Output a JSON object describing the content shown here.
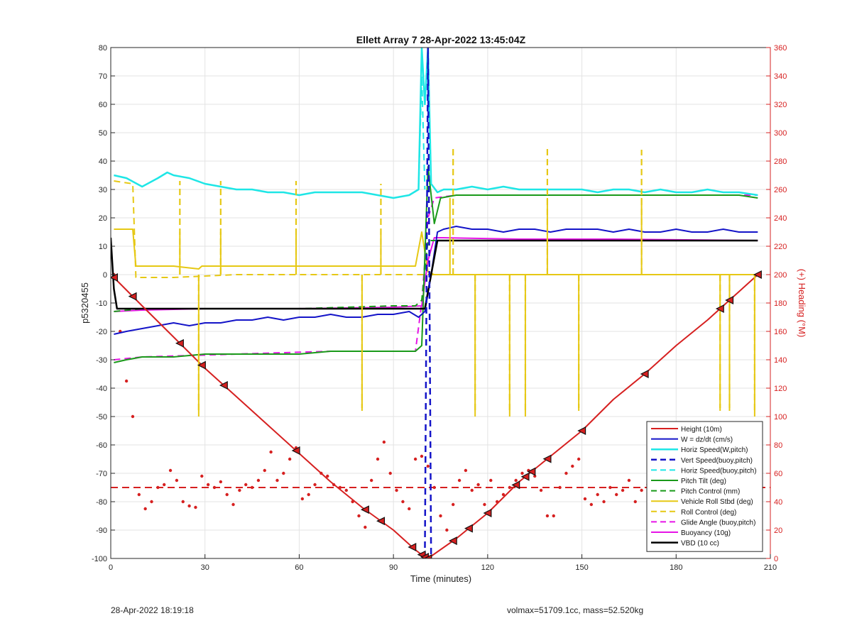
{
  "chart_data": {
    "type": "line",
    "title": "Ellett Array 7 28-Apr-2022 13:45:04Z",
    "xlabel": "Time (minutes)",
    "ylabel": "p5320455",
    "ylabel_right": "(+) Heading (°M)",
    "xlim": [
      0,
      210
    ],
    "ylim": [
      -100,
      80
    ],
    "ylim_right": [
      0,
      360
    ],
    "x_ticks": [
      0,
      30,
      60,
      90,
      120,
      150,
      180,
      210
    ],
    "y_ticks": [
      -100,
      -90,
      -80,
      -70,
      -60,
      -50,
      -40,
      -30,
      -20,
      -10,
      0,
      10,
      20,
      30,
      40,
      50,
      60,
      70,
      80
    ],
    "y_ticks_right": [
      0,
      20,
      40,
      60,
      80,
      100,
      120,
      140,
      160,
      180,
      200,
      220,
      240,
      260,
      280,
      300,
      320,
      340,
      360
    ],
    "grid": true,
    "legend_position": "bottom-right",
    "series": [
      {
        "name": "Height (10m)",
        "color": "#d62020",
        "style": "solid",
        "width": 2,
        "x": [
          1,
          10,
          20,
          30,
          40,
          50,
          60,
          70,
          80,
          90,
          97,
          100,
          101,
          110,
          120,
          130,
          140,
          150,
          160,
          170,
          180,
          190,
          200,
          206
        ],
        "y": [
          -1,
          -11,
          -22,
          -33,
          -43,
          -53,
          -63,
          -73,
          -82,
          -90,
          -97,
          -99.5,
          -100,
          -93,
          -84,
          -73,
          -64,
          -55,
          -44,
          -35,
          -25,
          -16,
          -6,
          0
        ]
      },
      {
        "name": "W = dz/dt (cm/s)",
        "color": "#1414c8",
        "style": "solid",
        "width": 2,
        "x": [
          1,
          5,
          10,
          15,
          20,
          25,
          30,
          35,
          40,
          45,
          50,
          55,
          60,
          65,
          70,
          75,
          80,
          85,
          90,
          95,
          98,
          100,
          102,
          104,
          106,
          110,
          115,
          120,
          125,
          130,
          135,
          140,
          145,
          150,
          155,
          160,
          165,
          170,
          175,
          180,
          185,
          190,
          195,
          200,
          206
        ],
        "y": [
          -21,
          -20,
          -19,
          -18,
          -17,
          -18,
          -17,
          -17,
          -16,
          -16,
          -15,
          -16,
          -15,
          -15,
          -14,
          -15,
          -15,
          -14,
          -14,
          -13,
          -15,
          -13,
          0,
          15,
          16,
          17,
          16,
          16,
          15,
          16,
          16,
          15,
          16,
          16,
          16,
          15,
          16,
          15,
          15,
          16,
          15,
          15,
          16,
          15,
          15
        ]
      },
      {
        "name": "Horiz Speed(W,pitch)",
        "color": "#1ee6e6",
        "style": "solid",
        "width": 2.5,
        "x": [
          1,
          5,
          10,
          15,
          18,
          20,
          25,
          30,
          35,
          40,
          45,
          50,
          55,
          60,
          65,
          70,
          75,
          80,
          85,
          90,
          95,
          98,
          99,
          100,
          101,
          102,
          104,
          106,
          110,
          115,
          120,
          125,
          130,
          135,
          140,
          145,
          150,
          155,
          160,
          165,
          170,
          175,
          180,
          185,
          190,
          195,
          200,
          206
        ],
        "y": [
          35,
          34,
          31,
          34,
          36,
          35,
          34,
          32,
          31,
          30,
          30,
          29,
          29,
          28,
          29,
          29,
          29,
          29,
          28,
          27,
          28,
          30,
          80,
          60,
          80,
          32,
          29,
          30,
          30,
          31,
          30,
          31,
          30,
          30,
          30,
          30,
          30,
          29,
          30,
          30,
          29,
          30,
          29,
          29,
          30,
          29,
          29,
          28
        ]
      },
      {
        "name": "Vert Speed(buoy,pitch)",
        "color": "#1414c8",
        "style": "dashed",
        "width": 2.5,
        "x": [
          100,
          101,
          102
        ],
        "y": [
          -100,
          80,
          -100
        ]
      },
      {
        "name": "Horiz Speed(buoy,pitch)",
        "color": "#1ee6e6",
        "style": "dashed",
        "width": 2,
        "x": [
          98,
          99,
          100
        ],
        "y": [
          30,
          70,
          30
        ]
      },
      {
        "name": "Pitch Tilt (deg)",
        "color": "#1a9a1a",
        "style": "solid",
        "width": 2,
        "x": [
          1,
          5,
          10,
          20,
          30,
          40,
          50,
          60,
          70,
          80,
          90,
          97,
          99,
          101,
          103,
          105,
          110,
          120,
          130,
          140,
          150,
          160,
          170,
          180,
          190,
          200,
          206
        ],
        "y": [
          -31,
          -30,
          -29,
          -29,
          -28,
          -28,
          -28,
          -28,
          -27,
          -27,
          -27,
          -27,
          -25,
          38,
          18,
          27,
          28,
          28,
          28,
          28,
          28,
          28,
          28,
          28,
          28,
          28,
          27
        ]
      },
      {
        "name": "Pitch Control (mm)",
        "color": "#1a9a1a",
        "style": "dashed",
        "width": 2,
        "x": [
          1,
          10,
          30,
          60,
          90,
          97,
          99,
          101,
          103,
          110,
          150,
          180,
          206
        ],
        "y": [
          -13,
          -12,
          -12,
          -12,
          -11,
          -11,
          -9,
          12,
          12,
          12,
          12,
          12,
          12
        ]
      },
      {
        "name": "Vehicle Roll Stbd (deg)",
        "color": "#e6c814",
        "style": "solid",
        "width": 2,
        "x": [
          1,
          7,
          8,
          20,
          28,
          29,
          40,
          60,
          80,
          90,
          97,
          99,
          101,
          103,
          105,
          110,
          130,
          150,
          170,
          190,
          200,
          206
        ],
        "y": [
          16,
          16,
          3,
          3,
          2,
          3,
          3,
          3,
          3,
          3,
          3,
          15,
          1,
          0,
          0,
          0,
          0,
          0,
          0,
          0,
          0,
          0
        ]
      },
      {
        "name": "Roll Control (deg)",
        "color": "#e6c814",
        "style": "dashed",
        "width": 2,
        "x": [
          1,
          7,
          8,
          20,
          40,
          60,
          80,
          97,
          99,
          101,
          105,
          120,
          150,
          180,
          206
        ],
        "y": [
          33,
          32,
          -1,
          -1,
          0,
          0,
          0,
          0,
          0,
          0,
          0,
          0,
          0,
          0,
          0
        ]
      },
      {
        "name": "Glide Angle (buoy,pitch)",
        "color": "#e614e6",
        "style": "dashed",
        "width": 2,
        "x": [
          1,
          10,
          40,
          70,
          97,
          99,
          101,
          103,
          110,
          150,
          206
        ],
        "y": [
          -30,
          -29,
          -28,
          -27,
          -27,
          -10,
          20,
          27,
          28,
          28,
          28
        ]
      },
      {
        "name": "Buoyancy (10g)",
        "color": "#e614e6",
        "style": "solid",
        "width": 2,
        "x": [
          1,
          10,
          30,
          60,
          90,
          99,
          101,
          103,
          106,
          130,
          160,
          206
        ],
        "y": [
          -13,
          -12.5,
          -12,
          -12,
          -11.5,
          -11,
          5,
          13,
          13,
          12.5,
          12.5,
          12
        ]
      },
      {
        "name": "VBD (10 cc)",
        "color": "#000000",
        "style": "solid",
        "width": 2.5,
        "x": [
          0,
          1,
          2,
          30,
          60,
          90,
          100,
          104,
          105,
          120,
          150,
          180,
          206
        ],
        "y": [
          13,
          -5,
          -12,
          -12,
          -12,
          -12,
          -12,
          12,
          12,
          12,
          12,
          12,
          12
        ]
      }
    ],
    "roll_control_spikes": {
      "series": "Roll Control (deg)",
      "up": [
        [
          22,
          33
        ],
        [
          35,
          33
        ],
        [
          59,
          33
        ],
        [
          86,
          32
        ],
        [
          109,
          45
        ],
        [
          139,
          45
        ],
        [
          169,
          44
        ]
      ],
      "down": [
        [
          28,
          -49
        ],
        [
          80,
          -47
        ],
        [
          116,
          -49
        ],
        [
          127,
          -49
        ],
        [
          132,
          -49
        ],
        [
          149,
          -47
        ],
        [
          194,
          -47
        ],
        [
          197,
          -47
        ],
        [
          205,
          -49
        ]
      ]
    },
    "roll_spikes": {
      "series": "Vehicle Roll Stbd (deg)",
      "up": [
        [
          22,
          15
        ],
        [
          35,
          15
        ],
        [
          59,
          15
        ],
        [
          86,
          15
        ],
        [
          108,
          27
        ],
        [
          139,
          27
        ],
        [
          169,
          27
        ]
      ],
      "down": [
        [
          28,
          -50
        ],
        [
          80,
          -48
        ],
        [
          116,
          -50
        ],
        [
          127,
          -50
        ],
        [
          132,
          -50
        ],
        [
          149,
          -48
        ],
        [
          194,
          -48
        ],
        [
          197,
          -48
        ],
        [
          205,
          -50
        ]
      ]
    },
    "heading_series": {
      "name": "Heading",
      "color": "#d62020",
      "axis": "right",
      "x": [
        1,
        3,
        5,
        7,
        9,
        11,
        13,
        15,
        17,
        19,
        21,
        23,
        25,
        27,
        29,
        31,
        33,
        35,
        37,
        39,
        41,
        43,
        45,
        47,
        49,
        51,
        53,
        55,
        57,
        59,
        61,
        63,
        65,
        67,
        69,
        71,
        73,
        75,
        77,
        79,
        81,
        83,
        85,
        87,
        89,
        91,
        93,
        95,
        97,
        99,
        101,
        103,
        105,
        107,
        109,
        111,
        113,
        115,
        117,
        119,
        121,
        123,
        125,
        127,
        129,
        131,
        133,
        135,
        137,
        139,
        141,
        143,
        145,
        147,
        149,
        151,
        153,
        155,
        157,
        159,
        161,
        163,
        165,
        167,
        169,
        171,
        173,
        175,
        177,
        179,
        181,
        183,
        185,
        187,
        189,
        191,
        193,
        195,
        197,
        199,
        201,
        203,
        205
      ],
      "y": [
        200,
        160,
        125,
        100,
        45,
        35,
        40,
        50,
        52,
        62,
        55,
        40,
        37,
        36,
        58,
        52,
        50,
        54,
        45,
        38,
        48,
        52,
        50,
        55,
        62,
        75,
        55,
        60,
        70,
        78,
        42,
        45,
        52,
        60,
        58,
        52,
        50,
        48,
        40,
        30,
        22,
        55,
        70,
        82,
        60,
        48,
        40,
        35,
        70,
        72,
        65,
        50,
        30,
        20,
        38,
        55,
        62,
        48,
        52,
        38,
        55,
        40,
        45,
        50,
        55,
        60,
        62,
        58,
        48,
        30,
        30,
        50,
        60,
        65,
        70,
        42,
        38,
        45,
        40,
        50,
        45,
        48,
        55,
        40,
        48,
        52,
        45,
        38,
        40,
        42,
        50,
        58,
        48,
        55,
        60,
        45,
        42,
        48,
        52,
        45,
        40,
        60,
        55
      ]
    },
    "heading_ref": {
      "value": 50,
      "axis": "right",
      "color": "#d62020",
      "style": "dashed"
    },
    "height_markers_x": [
      1,
      7,
      22,
      29,
      36,
      59,
      81,
      86,
      96,
      99,
      100,
      101,
      109,
      114,
      120,
      129,
      132,
      134,
      139,
      150,
      170,
      194,
      197,
      206
    ]
  },
  "footer": {
    "left": "28-Apr-2022 18:19:18",
    "right": "volmax=51709.1cc, mass=52.520kg"
  }
}
